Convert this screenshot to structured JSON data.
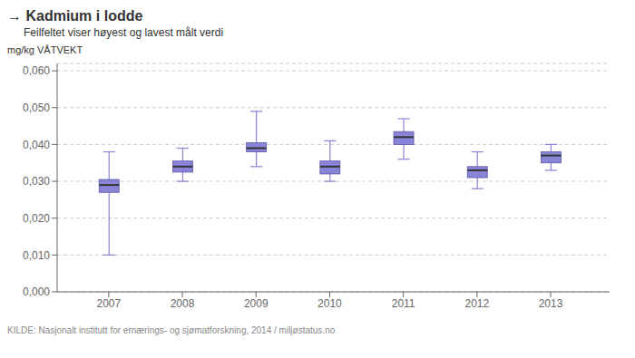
{
  "chart_data": {
    "type": "box",
    "title": "→ Kadmium i lodde",
    "subtitle": "Feilfeltet viser høyest og lavest målt verdi",
    "ylabel": "mg/kg VÅTVEKT",
    "source": "KILDE: Nasjonalt institutt for ernærings- og sjømatforskning, 2014 / miljøstatus.no",
    "x": [
      2007,
      2008,
      2009,
      2010,
      2011,
      2012,
      2013
    ],
    "medians": [
      0.029,
      0.034,
      0.039,
      0.034,
      0.042,
      0.033,
      0.037
    ],
    "q1": [
      0.027,
      0.0325,
      0.038,
      0.032,
      0.04,
      0.031,
      0.035
    ],
    "q3": [
      0.0305,
      0.0355,
      0.0405,
      0.0355,
      0.0435,
      0.034,
      0.038
    ],
    "whisker_lo": [
      0.01,
      0.03,
      0.034,
      0.03,
      0.036,
      0.028,
      0.033
    ],
    "whisker_hi": [
      0.038,
      0.039,
      0.049,
      0.041,
      0.047,
      0.038,
      0.04
    ],
    "xlim": [
      2006.3,
      2013.8
    ],
    "xticks": [
      2007,
      2008,
      2009,
      2010,
      2011,
      2012,
      2013
    ],
    "ylim": [
      0.0,
      0.062
    ],
    "yticks": [
      {
        "value": 0.0,
        "label": "0,000"
      },
      {
        "value": 0.01,
        "label": "0,010"
      },
      {
        "value": 0.02,
        "label": "0,020"
      },
      {
        "value": 0.03,
        "label": "0,030"
      },
      {
        "value": 0.04,
        "label": "0,040"
      },
      {
        "value": 0.05,
        "label": "0,050"
      },
      {
        "value": 0.06,
        "label": "0,060"
      }
    ],
    "grid": true
  }
}
